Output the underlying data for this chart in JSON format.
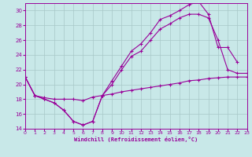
{
  "background_color": "#c8e8e8",
  "grid_color": "#a8c8c8",
  "line_color": "#990099",
  "xlabel": "Windchill (Refroidissement éolien,°C)",
  "xlim": [
    0,
    23
  ],
  "ylim": [
    14,
    31
  ],
  "yticks": [
    14,
    16,
    18,
    20,
    22,
    24,
    26,
    28,
    30
  ],
  "xticks": [
    0,
    1,
    2,
    3,
    4,
    5,
    6,
    7,
    8,
    9,
    10,
    11,
    12,
    13,
    14,
    15,
    16,
    17,
    18,
    19,
    20,
    21,
    22,
    23
  ],
  "series": [
    {
      "x": [
        0,
        1,
        2,
        3,
        4,
        5,
        6,
        7,
        8,
        9,
        10,
        11,
        12,
        13,
        14,
        15,
        16,
        17,
        18,
        19,
        20,
        21,
        22
      ],
      "y": [
        21.0,
        18.5,
        18.0,
        17.5,
        16.5,
        15.0,
        14.5,
        15.0,
        18.5,
        20.5,
        22.5,
        24.5,
        25.5,
        27.0,
        28.8,
        29.3,
        30.0,
        30.8,
        31.2,
        29.5,
        25.0,
        25.0,
        23.0
      ]
    },
    {
      "x": [
        0,
        1,
        2,
        3,
        4,
        5,
        6,
        7,
        8,
        9,
        10,
        11,
        12,
        13,
        14,
        15,
        16,
        17,
        18,
        19,
        20,
        21,
        22,
        23
      ],
      "y": [
        21.0,
        18.5,
        18.0,
        17.5,
        16.5,
        15.0,
        14.5,
        15.0,
        18.5,
        20.0,
        22.0,
        23.8,
        24.5,
        26.0,
        27.5,
        28.2,
        29.0,
        29.5,
        29.5,
        29.0,
        26.0,
        22.0,
        21.5,
        21.5
      ]
    },
    {
      "x": [
        0,
        1,
        2,
        3,
        4,
        5,
        6,
        7,
        8,
        9,
        10,
        11,
        12,
        13,
        14,
        15,
        16,
        17,
        18,
        19,
        20,
        21,
        22,
        23
      ],
      "y": [
        21.0,
        18.5,
        18.2,
        18.0,
        18.0,
        18.0,
        17.8,
        18.3,
        18.5,
        18.7,
        19.0,
        19.2,
        19.4,
        19.6,
        19.8,
        20.0,
        20.2,
        20.5,
        20.6,
        20.8,
        20.9,
        21.0,
        21.0,
        21.0
      ]
    }
  ]
}
